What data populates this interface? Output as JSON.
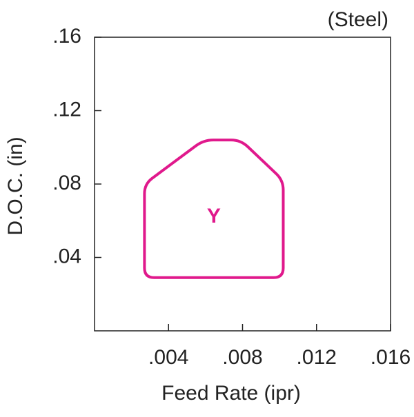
{
  "chart_data": {
    "type": "region",
    "subtitle": "(Steel)",
    "x_label": "Feed Rate (ipr)",
    "y_label": "D.O.C. (in)",
    "xlim": [
      0,
      0.016
    ],
    "ylim": [
      0,
      0.16
    ],
    "xticks": [
      {
        "value": 0.004,
        "label": ".004"
      },
      {
        "value": 0.008,
        "label": ".008"
      },
      {
        "value": 0.012,
        "label": ".012"
      },
      {
        "value": 0.016,
        "label": ".016"
      }
    ],
    "yticks": [
      {
        "value": 0.04,
        "label": ".04"
      },
      {
        "value": 0.08,
        "label": ".08"
      },
      {
        "value": 0.12,
        "label": ".12"
      },
      {
        "value": 0.16,
        "label": ".16"
      }
    ],
    "series": [
      {
        "name": "Y",
        "color": "#e0198c",
        "x": [
          0.0027,
          0.0059,
          0.0079,
          0.0102,
          0.0102,
          0.0027
        ],
        "y": [
          0.08,
          0.104,
          0.104,
          0.082,
          0.029,
          0.029
        ]
      }
    ]
  }
}
